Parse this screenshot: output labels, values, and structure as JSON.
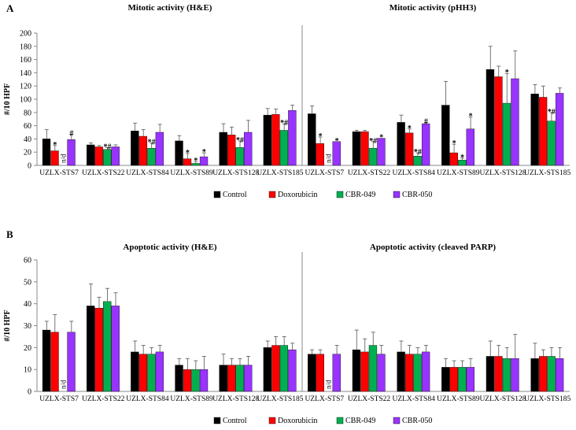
{
  "chart_data": [
    {
      "panel": "A",
      "type": "bar",
      "ylabel": "#/10 HPF",
      "ylim": [
        0,
        200
      ],
      "yticks": [
        0,
        20,
        40,
        60,
        80,
        100,
        120,
        140,
        160,
        180,
        200
      ],
      "groups": [
        {
          "title": "Mitotic activity (H&E)",
          "categories": [
            "UZLX-STS7",
            "UZLX-STS22",
            "UZLX-STS84",
            "UZLX-STS89",
            "UZLX-STS128",
            "UZLX-STS185"
          ],
          "series": [
            {
              "name": "Control",
              "values": [
                40,
                31,
                52,
                37,
                50,
                76
              ],
              "errors": [
                14,
                3,
                12,
                8,
                13,
                10
              ]
            },
            {
              "name": "Doxorubicin",
              "values": [
                22,
                28,
                44,
                10,
                46,
                77
              ],
              "errors": [
                8,
                2,
                10,
                8,
                12,
                8
              ]
            },
            {
              "name": "CBR-049",
              "values": [
                null,
                24,
                26,
                3,
                27,
                53
              ],
              "errors": [
                0,
                3,
                8,
                3,
                10,
                10
              ]
            },
            {
              "name": "CBR-050",
              "values": [
                39,
                28,
                50,
                13,
                50,
                83
              ],
              "errors": [
                8,
                3,
                12,
                6,
                18,
                8
              ]
            }
          ],
          "annotations": [
            {
              "category": "UZLX-STS7",
              "series": "Doxorubicin",
              "text": "*"
            },
            {
              "category": "UZLX-STS7",
              "series": "CBR-049",
              "text": "n/d"
            },
            {
              "category": "UZLX-STS7",
              "series": "CBR-050",
              "text": "#"
            },
            {
              "category": "UZLX-STS22",
              "series": "CBR-049",
              "text": "*#"
            },
            {
              "category": "UZLX-STS84",
              "series": "CBR-049",
              "text": "*#"
            },
            {
              "category": "UZLX-STS89",
              "series": "Doxorubicin",
              "text": "*"
            },
            {
              "category": "UZLX-STS89",
              "series": "CBR-049",
              "text": "*"
            },
            {
              "category": "UZLX-STS89",
              "series": "CBR-050",
              "text": "*"
            },
            {
              "category": "UZLX-STS128",
              "series": "CBR-049",
              "text": "*#"
            },
            {
              "category": "UZLX-STS185",
              "series": "CBR-049",
              "text": "*#"
            }
          ]
        },
        {
          "title": "Mitotic activity (pHH3)",
          "categories": [
            "UZLX-STS7",
            "UZLX-STS22",
            "UZLX-STS84",
            "UZLX-STS89",
            "UZLX-STS128",
            "UZLX-STS185"
          ],
          "series": [
            {
              "name": "Control",
              "values": [
                78,
                51,
                65,
                91,
                145,
                108
              ],
              "errors": [
                12,
                2,
                11,
                36,
                35,
                14
              ]
            },
            {
              "name": "Doxorubicin",
              "values": [
                33,
                51,
                49,
                19,
                134,
                103
              ],
              "errors": [
                10,
                2,
                6,
                13,
                16,
                17
              ]
            },
            {
              "name": "CBR-049",
              "values": [
                null,
                26,
                14,
                8,
                94,
                67
              ],
              "errors": [
                0,
                10,
                5,
                3,
                45,
                13
              ]
            },
            {
              "name": "CBR-050",
              "values": [
                36,
                41,
                63,
                55,
                131,
                109
              ],
              "errors": [
                0,
                0,
                2,
                18,
                42,
                8
              ]
            }
          ],
          "annotations": [
            {
              "category": "UZLX-STS7",
              "series": "Doxorubicin",
              "text": "*"
            },
            {
              "category": "UZLX-STS7",
              "series": "CBR-049",
              "text": "n/d"
            },
            {
              "category": "UZLX-STS7",
              "series": "CBR-050",
              "text": "*"
            },
            {
              "category": "UZLX-STS22",
              "series": "CBR-049",
              "text": "*#"
            },
            {
              "category": "UZLX-STS22",
              "series": "CBR-050",
              "text": "*"
            },
            {
              "category": "UZLX-STS84",
              "series": "Doxorubicin",
              "text": "*"
            },
            {
              "category": "UZLX-STS84",
              "series": "CBR-049",
              "text": "*#"
            },
            {
              "category": "UZLX-STS84",
              "series": "CBR-050",
              "text": "#"
            },
            {
              "category": "UZLX-STS89",
              "series": "Doxorubicin",
              "text": "*"
            },
            {
              "category": "UZLX-STS89",
              "series": "CBR-049",
              "text": "*"
            },
            {
              "category": "UZLX-STS89",
              "series": "CBR-050",
              "text": "*"
            },
            {
              "category": "UZLX-STS128",
              "series": "CBR-049",
              "text": "*"
            },
            {
              "category": "UZLX-STS185",
              "series": "CBR-049",
              "text": "*#"
            }
          ]
        }
      ]
    },
    {
      "panel": "B",
      "type": "bar",
      "ylabel": "#/10 HPF",
      "ylim": [
        0,
        60
      ],
      "yticks": [
        0,
        10,
        20,
        30,
        40,
        50,
        60
      ],
      "groups": [
        {
          "title": "Apoptotic activity (H&E)",
          "categories": [
            "UZLX-STS7",
            "UZLX-STS22",
            "UZLX-STS84",
            "UZLX-STS89",
            "UZLX-STS128",
            "UZLX-STS185"
          ],
          "series": [
            {
              "name": "Control",
              "values": [
                28,
                39,
                18,
                12,
                12,
                20
              ],
              "errors": [
                4,
                10,
                5,
                3,
                5,
                3
              ]
            },
            {
              "name": "Doxorubicin",
              "values": [
                27,
                38,
                17,
                10,
                12,
                21
              ],
              "errors": [
                8,
                5,
                4,
                5,
                3,
                4
              ]
            },
            {
              "name": "CBR-049",
              "values": [
                null,
                41,
                17,
                10,
                12,
                21
              ],
              "errors": [
                0,
                6,
                3,
                4,
                3,
                4
              ]
            },
            {
              "name": "CBR-050",
              "values": [
                27,
                39,
                18,
                10,
                12,
                19
              ],
              "errors": [
                5,
                6,
                3,
                6,
                4,
                3
              ]
            }
          ],
          "annotations": [
            {
              "category": "UZLX-STS7",
              "series": "CBR-049",
              "text": "n/d"
            }
          ]
        },
        {
          "title": "Apoptotic activity (cleaved PARP)",
          "categories": [
            "UZLX-STS7",
            "UZLX-STS22",
            "UZLX-STS84",
            "UZLX-STS89",
            "UZLX-STS128",
            "UZLX-STS185"
          ],
          "series": [
            {
              "name": "Control",
              "values": [
                17,
                19,
                18,
                11,
                16,
                15
              ],
              "errors": [
                2,
                9,
                5,
                4,
                7,
                7
              ]
            },
            {
              "name": "Doxorubicin",
              "values": [
                17,
                18,
                17,
                11,
                16,
                16
              ],
              "errors": [
                2,
                6,
                4,
                3,
                5,
                3
              ]
            },
            {
              "name": "CBR-049",
              "values": [
                null,
                21,
                17,
                11,
                15,
                16
              ],
              "errors": [
                0,
                6,
                3,
                3,
                5,
                4
              ]
            },
            {
              "name": "CBR-050",
              "values": [
                17,
                17,
                18,
                11,
                15,
                15
              ],
              "errors": [
                4,
                4,
                3,
                4,
                11,
                5
              ]
            }
          ],
          "annotations": [
            {
              "category": "UZLX-STS7",
              "series": "CBR-049",
              "text": "n/d"
            }
          ]
        }
      ]
    }
  ],
  "legend": [
    {
      "name": "Control",
      "color": "#000000"
    },
    {
      "name": "Doxorubicin",
      "color": "#ff0000"
    },
    {
      "name": "CBR-049",
      "color": "#00b050"
    },
    {
      "name": "CBR-050",
      "color": "#9933ff"
    }
  ]
}
